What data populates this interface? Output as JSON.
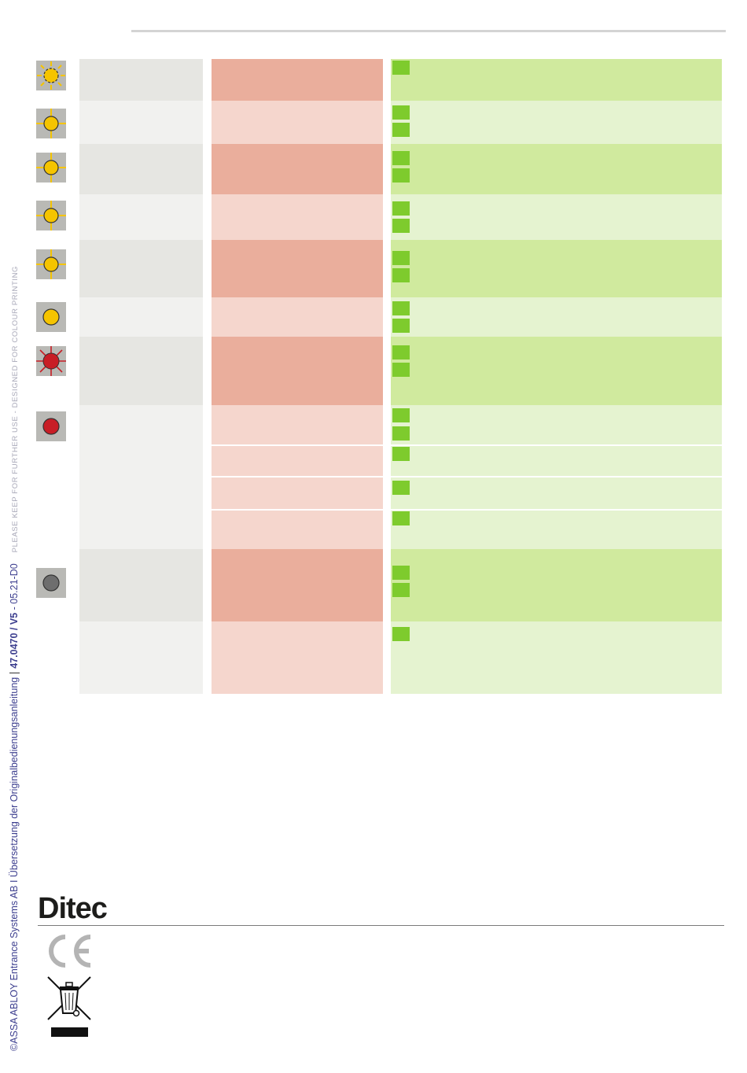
{
  "side_strip": {
    "copyright": "©ASSA ABLOY Entrance Systems AB I Übersetzung der Originalbedienungsanleitung",
    "doc_id": "47.0470 / V5",
    "revision": "- 05.21-D0",
    "print_note": "PLEASE KEEP FOR FURTHER USE - DESIGNED FOR COLOUR PRINTING"
  },
  "brand": {
    "logo_text": "Ditec"
  },
  "status_icons": [
    {
      "name": "yellow-led-flashing-dashed-icon",
      "color": "#f5c400",
      "state": "flashing"
    },
    {
      "name": "yellow-led-flashing-icon",
      "color": "#f5c400",
      "state": "flashing"
    },
    {
      "name": "yellow-led-flashing-icon",
      "color": "#f5c400",
      "state": "flashing"
    },
    {
      "name": "yellow-led-flashing-icon",
      "color": "#f5c400",
      "state": "flashing"
    },
    {
      "name": "yellow-led-flashing-icon",
      "color": "#f5c400",
      "state": "flashing"
    },
    {
      "name": "yellow-led-steady-icon",
      "color": "#f5c400",
      "state": "steady"
    },
    {
      "name": "red-led-flashing-icon",
      "color": "#c81e26",
      "state": "flashing"
    },
    {
      "name": "red-led-steady-icon",
      "color": "#c81e26",
      "state": "steady"
    },
    {
      "name": "grey-led-off-icon",
      "color": "#6e6e6e",
      "state": "off"
    }
  ],
  "footer_icons": [
    "ce-mark-icon",
    "weee-crossed-bin-icon"
  ]
}
